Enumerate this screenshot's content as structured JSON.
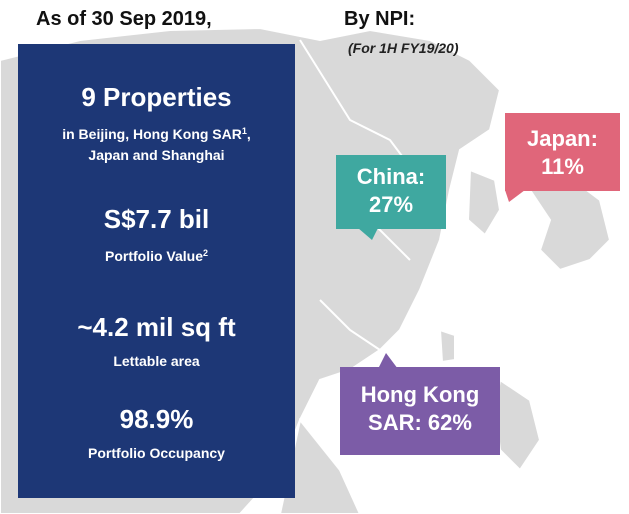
{
  "header": {
    "as_of": "As of 30 Sep 2019,",
    "by_npi": "By NPI:",
    "period": "(For 1H FY19/20)"
  },
  "portfolio": {
    "properties_title": "9 Properties",
    "locations_prefix": "in Beijing, Hong Kong SAR",
    "locations_note": "1",
    "locations_suffix": ",",
    "locations_line2": "Japan and Shanghai",
    "value": "S$7.7 bil",
    "value_label": "Portfolio Value",
    "value_note": "2",
    "area": "~4.2 mil sq ft",
    "area_label": "Lettable area",
    "occupancy": "98.9%",
    "occupancy_label": "Portfolio Occupancy"
  },
  "npi_breakdown": [
    {
      "region": "China:",
      "share": "27%",
      "color": "#3fa8a0"
    },
    {
      "region": "Japan:",
      "share": "11%",
      "color": "#e0667a"
    },
    {
      "region": "Hong Kong",
      "share": "SAR: 62%",
      "color": "#7c5ca7"
    }
  ],
  "colors": {
    "panel": "#1d3776",
    "map_land": "#d9d9d9"
  }
}
